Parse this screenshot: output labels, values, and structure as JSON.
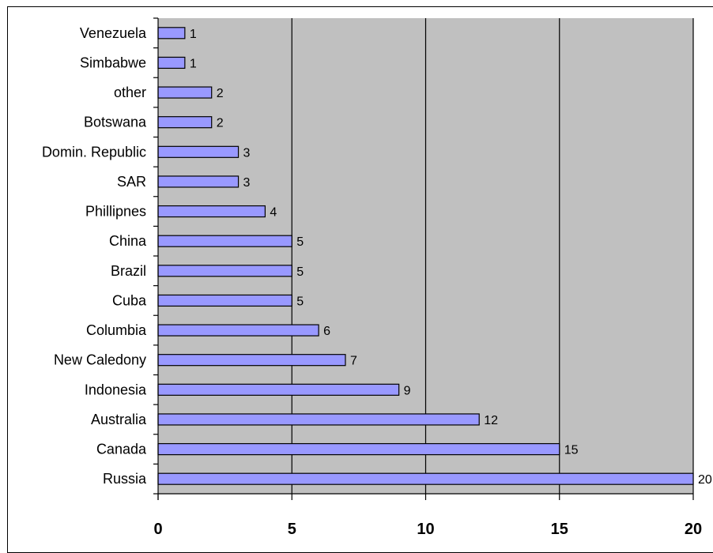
{
  "chart_data": {
    "type": "bar",
    "orientation": "horizontal",
    "categories": [
      "Venezuela",
      "Simbabwe",
      "other",
      "Botswana",
      "Domin. Republic",
      "SAR",
      "Phillipnes",
      "China",
      "Brazil",
      "Cuba",
      "Columbia",
      "New Caledony",
      "Indonesia",
      "Australia",
      "Canada",
      "Russia"
    ],
    "values": [
      1,
      1,
      2,
      2,
      3,
      3,
      4,
      5,
      5,
      5,
      6,
      7,
      9,
      12,
      15,
      20
    ],
    "xlim": [
      0,
      20
    ],
    "x_ticks": [
      0,
      5,
      10,
      15,
      20
    ],
    "grid": "vertical",
    "legend": "none",
    "colors": {
      "plot_background": "#c0c0c0",
      "bar_fill": "#9999ff",
      "bar_stroke": "#000000",
      "gridline": "#000000"
    }
  }
}
